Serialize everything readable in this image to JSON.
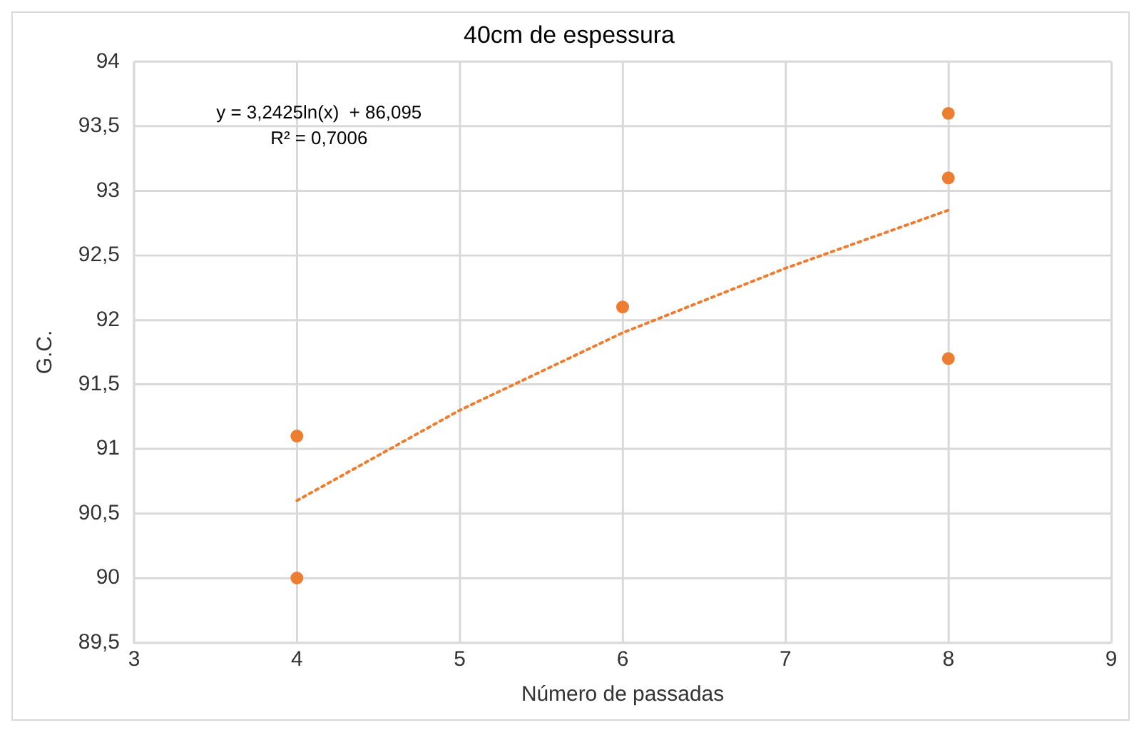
{
  "chart_data": {
    "type": "scatter",
    "title": "40cm de espessura",
    "xlabel": "Número de passadas",
    "ylabel": "G.C.",
    "series": [
      {
        "color": "#ed7d31",
        "x": [
          4,
          4,
          6,
          8,
          8,
          8
        ],
        "values": [
          91.1,
          90,
          92.1,
          93.6,
          93.1,
          91.7
        ]
      },
      {
        "type": "line",
        "color": "#ed7d31",
        "line_style": "dotted",
        "marker": "none",
        "x": [
          4,
          5,
          6,
          7,
          8
        ],
        "values": [
          90.6,
          91.3,
          91.9,
          92.4,
          92.85
        ]
      }
    ],
    "xlim": [
      3,
      9
    ],
    "xticks": [
      3,
      4,
      5,
      6,
      7,
      8,
      9
    ],
    "ylim": [
      89.5,
      94
    ],
    "yticks": [
      {
        "value": 89.5,
        "label": "89,5"
      },
      90,
      {
        "value": 90.5,
        "label": "90,5"
      },
      91,
      {
        "value": 91.5,
        "label": "91,5"
      },
      92,
      {
        "value": 92.5,
        "label": "92,5"
      },
      93,
      {
        "value": 93.5,
        "label": "93,5"
      },
      94
    ],
    "grid": true,
    "legend": false,
    "marker": "circle",
    "annotations": [
      "y = 3,2425ln(x)  + 86,095",
      "R² = 0,7006"
    ]
  }
}
